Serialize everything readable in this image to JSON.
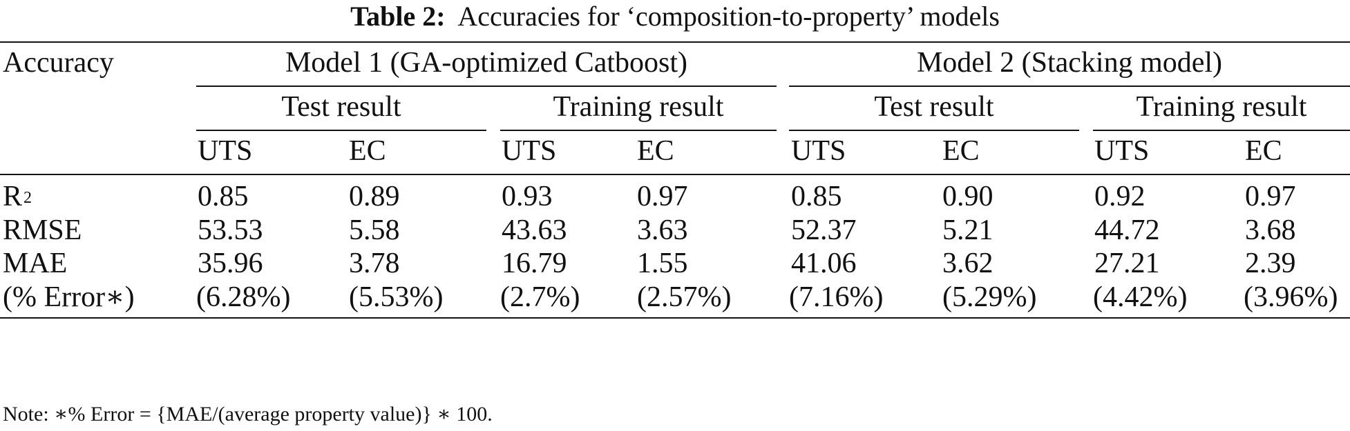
{
  "caption": {
    "lead": "Table 2:",
    "text": "Accuracies for ‘composition-to-property’ models"
  },
  "table": {
    "stub_header": "Accuracy",
    "models": [
      {
        "name": "Model 1 (GA-optimized Catboost)",
        "groups": [
          {
            "name": "Test result",
            "columns": [
              "UTS",
              "EC"
            ]
          },
          {
            "name": "Training result",
            "columns": [
              "UTS",
              "EC"
            ]
          }
        ]
      },
      {
        "name": "Model 2 (Stacking model)",
        "groups": [
          {
            "name": "Test result",
            "columns": [
              "UTS",
              "EC"
            ]
          },
          {
            "name": "Training result",
            "columns": [
              "UTS",
              "EC"
            ]
          }
        ]
      }
    ],
    "rows": [
      {
        "label": "R",
        "sup": "2",
        "values": [
          "0.85",
          "0.89",
          "0.93",
          "0.97",
          "0.85",
          "0.90",
          "0.92",
          "0.97"
        ]
      },
      {
        "label": "RMSE",
        "values": [
          "53.53",
          "5.58",
          "43.63",
          "3.63",
          "52.37",
          "5.21",
          "44.72",
          "3.68"
        ]
      },
      {
        "label": "MAE",
        "values": [
          "35.96",
          "3.78",
          "16.79",
          "1.55",
          "41.06",
          "3.62",
          "27.21",
          "2.39"
        ]
      },
      {
        "label": "(% Error∗)",
        "values": [
          "(6.28%)",
          "(5.53%)",
          "(2.7%)",
          "(2.57%)",
          "(7.16%)",
          "(5.29%)",
          "(4.42%)",
          "(3.96%)"
        ]
      }
    ]
  },
  "note": "Note: ∗% Error = {MAE/(average property value)} ∗ 100."
}
